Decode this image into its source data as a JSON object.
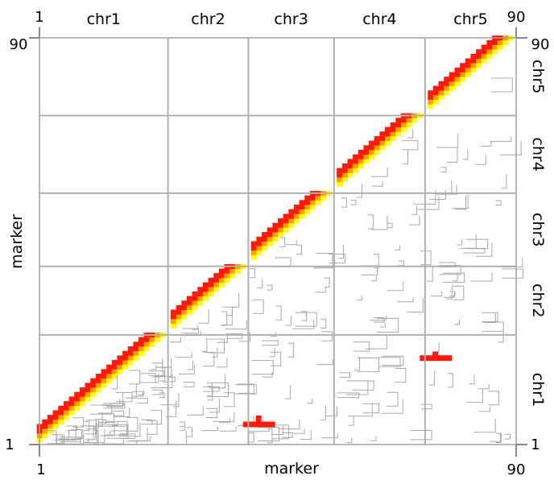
{
  "chart_data": {
    "type": "heatmap",
    "title": "",
    "xlabel": "marker",
    "ylabel": "marker",
    "xlim": [
      1,
      90
    ],
    "ylim": [
      1,
      90
    ],
    "tick_labels": {
      "x_start": "1",
      "x_end": "90",
      "y_start": "1",
      "y_end": "90"
    },
    "chromosomes": [
      {
        "name": "chr1",
        "start": 1,
        "end": 25
      },
      {
        "name": "chr2",
        "start": 25,
        "end": 40
      },
      {
        "name": "chr3",
        "start": 40,
        "end": 56
      },
      {
        "name": "chr4",
        "start": 56,
        "end": 73
      },
      {
        "name": "chr5",
        "start": 73,
        "end": 90
      }
    ],
    "colors": {
      "strong": "#ff1a0a",
      "medium": "#ffa000",
      "weak": "#ffff00",
      "grid": "#b0b0b0",
      "contour": "#a8a8a8"
    },
    "off_diagonal_hotspots": [
      {
        "x_range": [
          39,
          45
        ],
        "y_range": [
          4,
          7
        ],
        "level": "strong",
        "note_chroms": [
          "chr3",
          "chr1"
        ]
      },
      {
        "x_range": [
          72,
          78
        ],
        "y_range": [
          19,
          21
        ],
        "level": "strong",
        "note_chroms": [
          "chr5",
          "chr1"
        ]
      }
    ],
    "grid": true,
    "legend": "none"
  }
}
